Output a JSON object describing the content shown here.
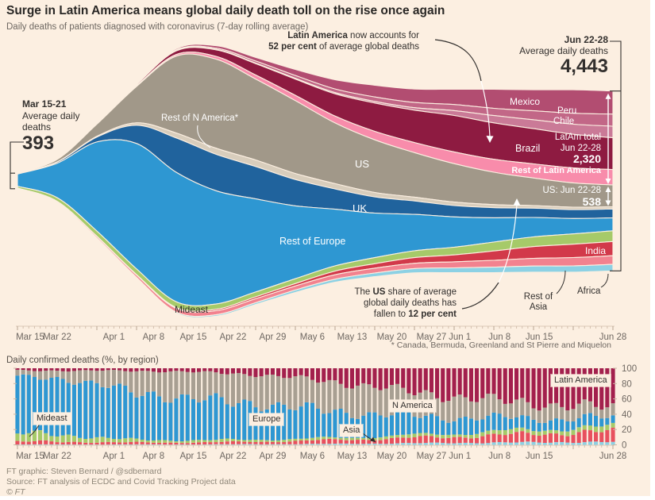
{
  "page": {
    "title": "Surge in Latin America means global daily death toll on the rise once again",
    "subtitle": "Daily deaths of patients diagnosed with coronavirus (7-day rolling average)",
    "background": "#fcefe1",
    "footnote": "* Canada, Bermuda, Greenland and St Pierre and Miquelon",
    "footer": {
      "credit": "FT graphic: Steven Bernard / @sdbernard",
      "source": "Source: FT analysis of ECDC and Covid Tracking Project data",
      "copyright": "© FT"
    }
  },
  "bottom_title": "Daily confirmed deaths (%, by region)",
  "annotations": {
    "start": {
      "period": "Mar 15-21",
      "line1": "Average daily",
      "line2": "deaths",
      "value": "393"
    },
    "latam_share": {
      "l1b": "Latin America",
      "l1": " now accounts for",
      "l2b": "52 per cent",
      "l2": " of average global deaths"
    },
    "end": {
      "period": "Jun 22-28",
      "label": "Average daily deaths",
      "value": "4,443"
    },
    "latam_total": {
      "l1": "LatAm total",
      "l2": "Jun 22-28",
      "value": "2,320"
    },
    "us_total": {
      "l1": "US: Jun 22-28",
      "value": "538"
    },
    "us_share": {
      "l1a": "The ",
      "l1b": "US",
      "l1c": " share of average",
      "l2": "global daily deaths has",
      "l3a": "fallen to ",
      "l3b": "12 per cent"
    }
  },
  "stream_labels": {
    "mexico": "Mexico",
    "peru": "Peru",
    "chile": "Chile",
    "brazil": "Brazil",
    "rest_latam": "Rest of Latin America",
    "us": "US",
    "rest_na": "Rest of N America*",
    "uk": "UK",
    "rest_europe": "Rest of Europe",
    "mideast": "Mideast",
    "india": "India",
    "rest_asia_1": "Rest of",
    "rest_asia_2": "Asia",
    "africa": "Africa"
  },
  "bar_labels": {
    "mideast": "Mideast",
    "europe": "Europe",
    "asia": "Asia",
    "n_america": "N America",
    "latin_america": "Latin America"
  },
  "chart_data": [
    {
      "type": "area",
      "variant": "streamgraph",
      "unit": "deaths per day, 7-day rolling average",
      "x_weekly": [
        "Mar 15",
        "Mar 22",
        "Mar 29",
        "Apr 5",
        "Apr 12",
        "Apr 19",
        "Apr 26",
        "May 3",
        "May 10",
        "May 17",
        "May 24",
        "May 31",
        "Jun 7",
        "Jun 14",
        "Jun 21",
        "Jun 28"
      ],
      "axis": {
        "labels": [
          "Mar 15",
          "Mar 22",
          "Apr 1",
          "Apr 8",
          "Apr 15",
          "Apr 22",
          "Apr 29",
          "May 6",
          "May 13",
          "May 20",
          "May 27",
          "Jun 1",
          "Jun 8",
          "Jun 15",
          "Jun 28"
        ],
        "label_days": [
          0,
          7,
          17,
          24,
          31,
          38,
          45,
          52,
          59,
          66,
          73,
          78,
          85,
          92,
          105
        ],
        "total_days": 105
      },
      "series": [
        {
          "id": "mexico",
          "name": "Mexico",
          "color": "#b24d71",
          "values": [
            0,
            1,
            3,
            10,
            30,
            60,
            90,
            150,
            230,
            290,
            330,
            380,
            470,
            520,
            580,
            570
          ]
        },
        {
          "id": "peru",
          "name": "Peru",
          "color": "#c26787",
          "values": [
            0,
            0,
            2,
            5,
            15,
            30,
            50,
            70,
            90,
            110,
            130,
            150,
            180,
            220,
            270,
            300
          ]
        },
        {
          "id": "chile",
          "name": "Chile",
          "color": "#ca7a97",
          "values": [
            0,
            0,
            1,
            3,
            8,
            12,
            15,
            20,
            30,
            40,
            60,
            120,
            180,
            220,
            250,
            285
          ]
        },
        {
          "id": "brazil",
          "name": "Brazil",
          "color": "#8e1b41",
          "values": [
            0,
            2,
            8,
            30,
            90,
            160,
            280,
            400,
            550,
            700,
            800,
            900,
            900,
            870,
            830,
            785
          ]
        },
        {
          "id": "rest-latam",
          "name": "Rest of Latin America",
          "color": "#f88cab",
          "values": [
            0,
            1,
            4,
            15,
            40,
            70,
            100,
            130,
            170,
            210,
            250,
            290,
            320,
            350,
            370,
            380
          ]
        },
        {
          "id": "us",
          "name": "US",
          "color": "#a19889",
          "values": [
            15,
            60,
            300,
            900,
            1900,
            2200,
            2000,
            1800,
            1500,
            1300,
            1100,
            950,
            800,
            680,
            600,
            538
          ]
        },
        {
          "id": "rest-n-america",
          "name": "Rest of N America",
          "color": "#d8cdbc",
          "values": [
            1,
            4,
            20,
            60,
            120,
            150,
            160,
            150,
            130,
            110,
            95,
            85,
            75,
            65,
            60,
            55
          ]
        },
        {
          "id": "uk",
          "name": "UK",
          "color": "#20639d",
          "values": [
            5,
            30,
            120,
            450,
            850,
            900,
            800,
            650,
            500,
            400,
            330,
            280,
            250,
            230,
            220,
            220
          ]
        },
        {
          "id": "rest-europe",
          "name": "Rest of Europe",
          "color": "#2e97d2",
          "values": [
            300,
            850,
            2200,
            3100,
            3200,
            2800,
            2300,
            1800,
            1400,
            1100,
            900,
            750,
            600,
            480,
            380,
            320
          ]
        },
        {
          "id": "mideast",
          "name": "Mideast",
          "color": "#a6ca69",
          "values": [
            45,
            90,
            130,
            140,
            140,
            130,
            120,
            120,
            130,
            150,
            170,
            190,
            220,
            240,
            255,
            265
          ]
        },
        {
          "id": "india",
          "name": "India",
          "color": "#d2394a",
          "values": [
            1,
            2,
            5,
            10,
            25,
            35,
            45,
            60,
            90,
            110,
            140,
            170,
            230,
            290,
            330,
            350
          ]
        },
        {
          "id": "rest-asia",
          "name": "Rest of Asia",
          "color": "#f2828f",
          "values": [
            15,
            25,
            40,
            60,
            90,
            100,
            100,
            100,
            110,
            120,
            130,
            150,
            170,
            190,
            205,
            215
          ]
        },
        {
          "id": "africa",
          "name": "Africa",
          "color": "#8cd1e4",
          "values": [
            2,
            4,
            8,
            15,
            25,
            35,
            45,
            60,
            75,
            90,
            105,
            120,
            135,
            150,
            155,
            160
          ]
        }
      ],
      "key_values": {
        "start_avg": 393,
        "end_avg": 4443,
        "latam_total_end": 2320,
        "us_end": 538,
        "latam_share_pct": 52,
        "us_share_pct": 12
      }
    },
    {
      "type": "bar",
      "variant": "stacked-100pct",
      "title": "Daily confirmed deaths (%, by region)",
      "y_ticks": [
        0,
        20,
        40,
        60,
        80,
        100
      ],
      "bar_count": 106,
      "weekly_shares": {
        "x": [
          "Mar 15",
          "Mar 22",
          "Mar 29",
          "Apr 5",
          "Apr 12",
          "Apr 19",
          "Apr 26",
          "May 3",
          "May 10",
          "May 17",
          "May 24",
          "May 31",
          "Jun 7",
          "Jun 14",
          "Jun 21",
          "Jun 28"
        ],
        "series": [
          {
            "id": "africa",
            "name": "Africa",
            "color": "#8cd1e4",
            "values": [
              0.5,
              0.5,
              0.5,
              0.5,
              0.5,
              0.6,
              0.8,
              1.0,
              1.3,
              1.7,
              2.1,
              2.5,
              2.9,
              3.2,
              3.5,
              3.7
            ]
          },
          {
            "id": "asia",
            "name": "Asia",
            "color": "#e8505e",
            "values": [
              4,
              3.5,
              3,
              2.5,
              2.5,
              2.8,
              3.2,
              4,
              5,
              6,
              7,
              8,
              9.5,
              11,
              12.5,
              13.5
            ]
          },
          {
            "id": "mideast",
            "name": "Mideast",
            "color": "#a6ca69",
            "values": [
              11,
              9,
              6,
              3.5,
              2.8,
              2.8,
              2.7,
              2.6,
              2.7,
              3,
              3.6,
              4.2,
              4.8,
              5.4,
              5.8,
              6
            ]
          },
          {
            "id": "europe",
            "name": "Europe",
            "color": "#2e97d2",
            "values": [
              74,
              74,
              70,
              62,
              56,
              52,
              47,
              41,
              35,
              29,
              25,
              21,
              17.5,
              15,
              12.5,
              11
            ]
          },
          {
            "id": "n-america",
            "name": "N America",
            "color": "#a89f92",
            "values": [
              7.5,
              10,
              17.5,
              28,
              34,
              36,
              38,
              39,
              38,
              36,
              31,
              27,
              23,
              19.5,
              16,
              13.8
            ]
          },
          {
            "id": "latin-america",
            "name": "Latin America",
            "color": "#a3204d",
            "values": [
              3,
              3,
              3,
              3.5,
              4.2,
              5.8,
              8.3,
              12.4,
              18,
              24.3,
              31.3,
              37.3,
              42.3,
              45.9,
              49.7,
              52
            ]
          }
        ]
      }
    }
  ]
}
